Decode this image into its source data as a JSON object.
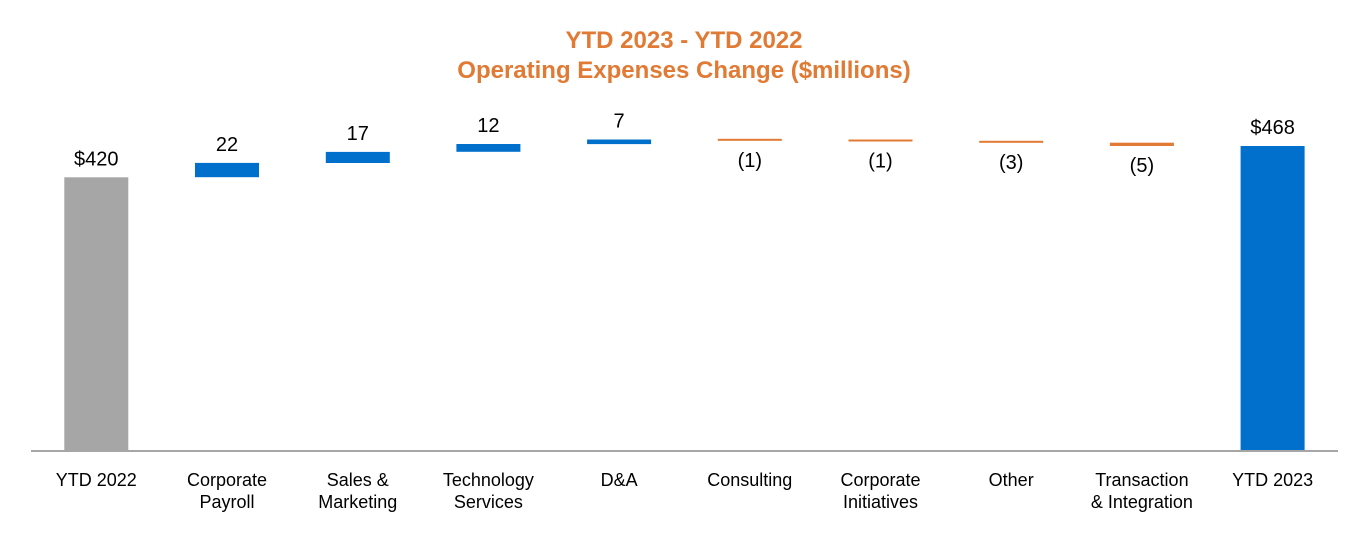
{
  "chart_data": {
    "type": "waterfall",
    "title": "YTD 2023 - YTD 2022",
    "subtitle": "Operating Expenses Change ($millions)",
    "categories": [
      [
        "YTD 2022"
      ],
      [
        "Corporate",
        "Payroll"
      ],
      [
        "Sales &",
        "Marketing"
      ],
      [
        "Technology",
        "Services"
      ],
      [
        "D&A"
      ],
      [
        "Consulting"
      ],
      [
        "Corporate",
        "Initiatives"
      ],
      [
        "Other"
      ],
      [
        "Transaction",
        "& Integration"
      ],
      [
        "YTD 2023"
      ]
    ],
    "values": [
      420,
      22,
      17,
      12,
      7,
      -1,
      -1,
      -3,
      -5,
      468
    ],
    "labels": [
      "$420",
      "22",
      "17",
      "12",
      "7",
      "(1)",
      "(1)",
      "(3)",
      "(5)",
      "$468"
    ],
    "kinds": [
      "total",
      "delta",
      "delta",
      "delta",
      "delta",
      "delta",
      "delta",
      "delta",
      "delta",
      "total"
    ],
    "colors": {
      "start_total": "#A6A6A6",
      "end_total": "#0070CC",
      "increase": "#0070CC",
      "decrease": "#E07A34",
      "title": "#E07A34",
      "axis": "#A6A6A6"
    },
    "ylim": [
      0,
      468
    ],
    "xlabel": "",
    "ylabel": "",
    "grid": false,
    "legend": "none"
  }
}
